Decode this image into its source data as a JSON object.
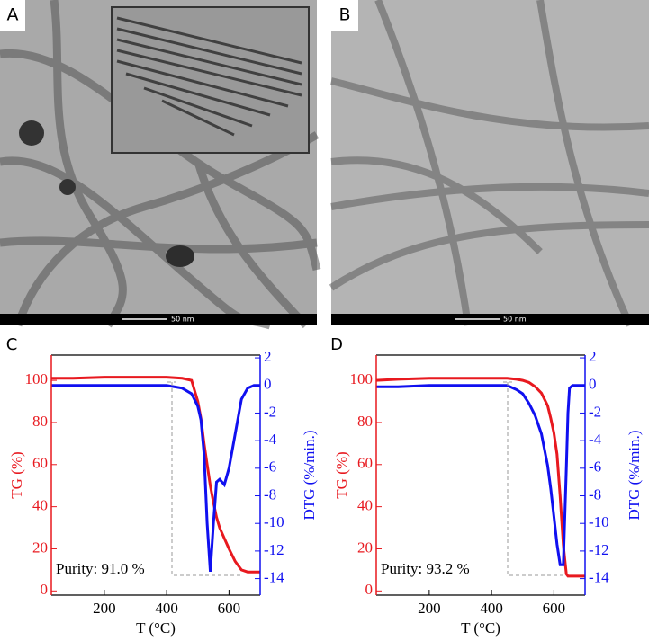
{
  "panels": [
    {
      "label": "A",
      "scale": "50 nm"
    },
    {
      "label": "B",
      "scale": "50 nm"
    }
  ],
  "chart_data": [
    {
      "type": "line",
      "panel": "C",
      "xlabel": "T (°C)",
      "ylabel": "TG (%)",
      "y2label": "DTG (%/min.)",
      "annotation": "Purity: 91.0 %",
      "x": [
        30,
        100,
        200,
        300,
        400,
        450,
        480,
        500,
        510,
        520,
        530,
        540,
        550,
        560,
        570,
        585,
        600,
        620,
        640,
        660,
        680,
        700
      ],
      "series": [
        {
          "color": "#e8191f",
          "axis": "y",
          "values": [
            101,
            101,
            101.5,
            101.5,
            101.5,
            101,
            100,
            90,
            82,
            70,
            60,
            50,
            42,
            35,
            30,
            25,
            20,
            14,
            10,
            9,
            9,
            9
          ]
        },
        {
          "color": "#1010f0",
          "axis": "y2",
          "values": [
            0,
            0,
            0,
            0,
            0,
            -0.2,
            -0.6,
            -1.5,
            -2.5,
            -5,
            -10,
            -13.5,
            -10,
            -7,
            -6.8,
            -7.2,
            -6,
            -3.5,
            -1,
            -0.2,
            0,
            0
          ]
        }
      ],
      "xlim": [
        30,
        700
      ],
      "xticks": [
        200,
        400,
        600
      ],
      "ylim": [
        -2,
        112
      ],
      "yticks": [
        0,
        20,
        40,
        60,
        80,
        100
      ],
      "y2lim": [
        -15.2,
        2.2
      ],
      "y2ticks": [
        2,
        0,
        -2,
        -4,
        -6,
        -8,
        -10,
        -12,
        -14
      ]
    },
    {
      "type": "line",
      "panel": "D",
      "xlabel": "T (°C)",
      "ylabel": "TG (%)",
      "y2label": "DTG (%/min.)",
      "annotation": "Purity: 93.2 %",
      "x": [
        30,
        100,
        200,
        300,
        400,
        450,
        480,
        500,
        520,
        540,
        560,
        580,
        590,
        600,
        610,
        620,
        630,
        640,
        645,
        650,
        660,
        700
      ],
      "series": [
        {
          "color": "#e8191f",
          "axis": "y",
          "values": [
            100,
            100.5,
            101,
            101,
            101,
            101,
            100.5,
            100,
            99,
            97,
            94,
            88,
            82,
            75,
            65,
            45,
            22,
            8,
            7,
            7,
            7,
            7
          ]
        },
        {
          "color": "#1010f0",
          "axis": "y2",
          "values": [
            -0.1,
            -0.1,
            0,
            0,
            0,
            0,
            -0.3,
            -0.6,
            -1.3,
            -2.2,
            -3.5,
            -5.8,
            -7.5,
            -9.5,
            -11.5,
            -13,
            -13,
            -6,
            -2,
            -0.2,
            0,
            0
          ]
        }
      ],
      "xlim": [
        30,
        700
      ],
      "xticks": [
        200,
        400,
        600
      ],
      "ylim": [
        -2,
        112
      ],
      "yticks": [
        0,
        20,
        40,
        60,
        80,
        100
      ],
      "y2lim": [
        -15.2,
        2.2
      ],
      "y2ticks": [
        2,
        0,
        -2,
        -4,
        -6,
        -8,
        -10,
        -12,
        -14
      ]
    }
  ]
}
